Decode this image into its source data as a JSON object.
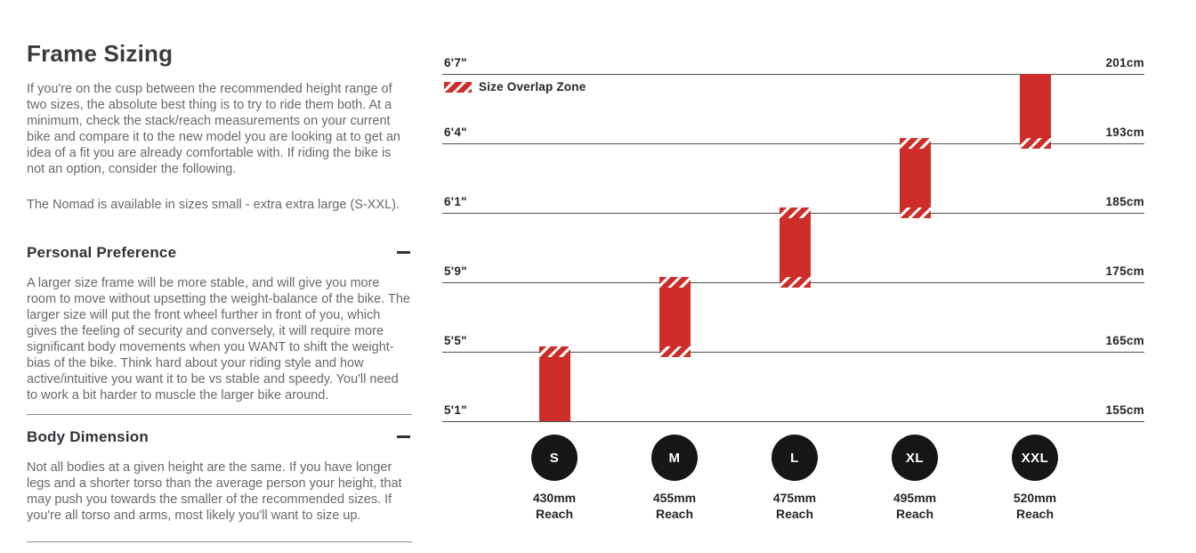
{
  "page": {
    "title": "Frame Sizing",
    "intro": [
      "If you're on the cusp between the recommended height range of two sizes, the absolute best thing is to try to ride them both. At a minimum, check the stack/reach measurements on your current bike and compare it to the new model you are looking at to get an idea of a fit you are already comfortable with. If riding the bike is not an option, consider the following.",
      "The Nomad is available in sizes small - extra extra large (S-XXL)."
    ],
    "sections": [
      {
        "heading": "Personal Preference",
        "toggle_icon": "minus-icon",
        "body": "A larger size frame will be more stable, and will give you more room to move without upsetting the weight-balance of the bike. The larger size will put the front wheel further in front of you, which gives the feeling of security and conversely, it will require more significant body movements when you WANT to shift the weight-bias of the bike. Think hard about your riding style and how active/intuitive you want it to be vs stable and speedy. You'll need to work a bit harder to muscle the larger bike around."
      },
      {
        "heading": "Body Dimension",
        "toggle_icon": "minus-icon",
        "body": "Not all bodies at a given height are the same. If you have longer legs and a shorter torso than the average person your height, that may push you towards the smaller of the recommended sizes. If you're all torso and arms, most likely you'll want to size up."
      }
    ]
  },
  "chart_data": {
    "type": "bar",
    "title": "",
    "legend": {
      "swatch_icon": "red-hatch-swatch",
      "label": "Size Overlap Zone"
    },
    "axis": {
      "left_labels": [
        "6'7\"",
        "6'4\"",
        "6'1\"",
        "5'9\"",
        "5'5\"",
        "5'1\""
      ],
      "right_labels": [
        "201cm",
        "193cm",
        "185cm",
        "175cm",
        "165cm",
        "155cm"
      ],
      "gridline_values_cm": [
        201,
        193,
        185,
        175,
        165,
        155
      ]
    },
    "reach_suffix": "Reach",
    "sizes": [
      {
        "label": "S",
        "reach": "430mm",
        "range_cm": [
          155,
          165
        ],
        "range_ft": [
          "5'1\"",
          "5'5\""
        ],
        "top_line": 4,
        "bottom_line": 5,
        "overlap_top": true,
        "overlap_bottom": false
      },
      {
        "label": "M",
        "reach": "455mm",
        "range_cm": [
          165,
          175
        ],
        "range_ft": [
          "5'5\"",
          "5'9\""
        ],
        "top_line": 3,
        "bottom_line": 4,
        "overlap_top": true,
        "overlap_bottom": true
      },
      {
        "label": "L",
        "reach": "475mm",
        "range_cm": [
          175,
          185
        ],
        "range_ft": [
          "5'9\"",
          "6'1\""
        ],
        "top_line": 2,
        "bottom_line": 3,
        "overlap_top": true,
        "overlap_bottom": true
      },
      {
        "label": "XL",
        "reach": "495mm",
        "range_cm": [
          185,
          193
        ],
        "range_ft": [
          "6'1\"",
          "6'4\""
        ],
        "top_line": 1,
        "bottom_line": 2,
        "overlap_top": true,
        "overlap_bottom": true
      },
      {
        "label": "XXL",
        "reach": "520mm",
        "range_cm": [
          193,
          201
        ],
        "range_ft": [
          "6'4\"",
          "6'7\""
        ],
        "top_line": 0,
        "bottom_line": 1,
        "overlap_top": false,
        "overlap_bottom": true
      }
    ],
    "colors": {
      "bar_red": "#cf2d29",
      "circle_black": "#161616",
      "grid_line": "#4d4f52"
    }
  }
}
